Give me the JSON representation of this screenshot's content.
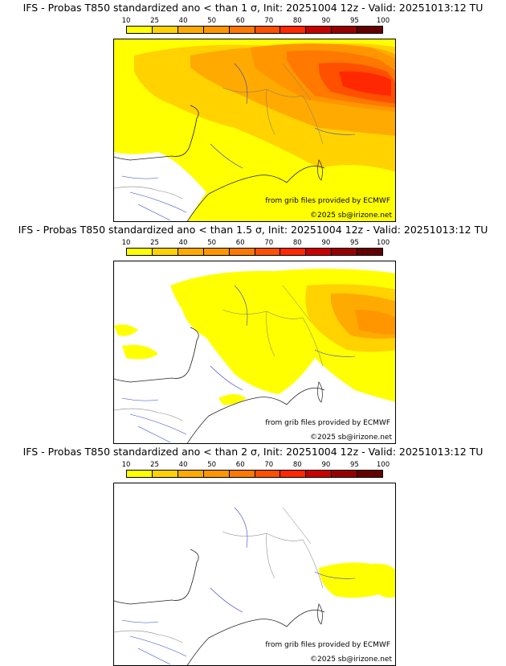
{
  "legend": {
    "ticks": [
      "10",
      "25",
      "40",
      "50",
      "60",
      "70",
      "80",
      "90",
      "95",
      "100"
    ],
    "colors": [
      "#ffff00",
      "#ffd200",
      "#ffaa00",
      "#ff9600",
      "#ff7800",
      "#ff5000",
      "#ff2800",
      "#c80000",
      "#960000",
      "#640000"
    ]
  },
  "credits": {
    "source": "from grib files provided by ECMWF",
    "copyright": "©2025 sb@irizone.net"
  },
  "panels": [
    {
      "title": "IFS - Probas T850  standardized ano < than 1 σ, Init: 20251004 12z - Valid: 20251013:12 TU"
    },
    {
      "title": "IFS - Probas T850  standardized ano < than 1.5 σ, Init: 20251004 12z - Valid: 20251013:12 TU"
    },
    {
      "title": "IFS - Probas T850  standardized ano < than 2 σ, Init: 20251004 12z - Valid: 20251013:12 TU"
    }
  ]
}
